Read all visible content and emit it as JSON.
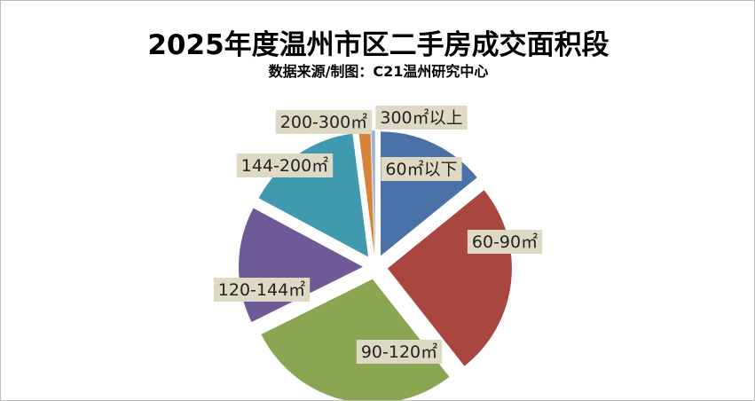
{
  "chart_data": {
    "type": "pie",
    "title": "2025年度温州市区二手房成交面积段",
    "subtitle": "数据来源/制图：C21温州研究中心",
    "exploded": true,
    "categories": [
      "60㎡以下",
      "60-90㎡",
      "90-120㎡",
      "120-144㎡",
      "144-200㎡",
      "200-300㎡",
      "300㎡以上"
    ],
    "values": [
      14,
      25,
      28,
      15,
      15,
      1.5,
      0.5
    ],
    "colors": [
      "#4a72a8",
      "#a8463f",
      "#8aa653",
      "#6e5a97",
      "#3f9aaf",
      "#d9823b",
      "#9bb3d6"
    ]
  }
}
